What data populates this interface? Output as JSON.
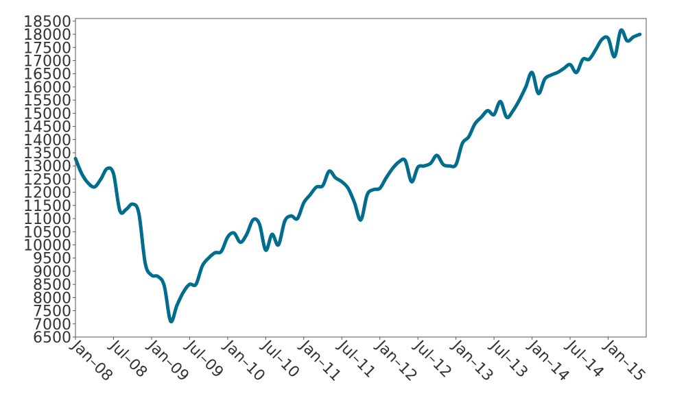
{
  "chart_data": {
    "type": "line",
    "title": "",
    "xlabel": "",
    "ylabel": "",
    "ylim": [
      6500,
      18600
    ],
    "xlim": [
      "2008-01",
      "2015-07"
    ],
    "grid": false,
    "legend": "none",
    "y_ticks": [
      6500,
      7000,
      7500,
      8000,
      8500,
      9000,
      9500,
      10000,
      10500,
      11000,
      11500,
      12000,
      12500,
      13000,
      13500,
      14000,
      14500,
      15000,
      15500,
      16000,
      16500,
      17000,
      17500,
      18000,
      18500
    ],
    "x_ticks": [
      {
        "date": "2008-01",
        "label": "Jan–08"
      },
      {
        "date": "2008-07",
        "label": "Jul–08"
      },
      {
        "date": "2009-01",
        "label": "Jan–09"
      },
      {
        "date": "2009-07",
        "label": "Jul–09"
      },
      {
        "date": "2010-01",
        "label": "Jan–10"
      },
      {
        "date": "2010-07",
        "label": "Jul–10"
      },
      {
        "date": "2011-01",
        "label": "Jan–11"
      },
      {
        "date": "2011-07",
        "label": "Jul–11"
      },
      {
        "date": "2012-01",
        "label": "Jan–12"
      },
      {
        "date": "2012-07",
        "label": "Jul–12"
      },
      {
        "date": "2013-01",
        "label": "Jan–13"
      },
      {
        "date": "2013-07",
        "label": "Jul–13"
      },
      {
        "date": "2014-01",
        "label": "Jan–14"
      },
      {
        "date": "2014-07",
        "label": "Jul–14"
      },
      {
        "date": "2015-01",
        "label": "Jan–15"
      }
    ],
    "series": [
      {
        "color": "#006d8f",
        "points": [
          [
            "2008-01",
            13280
          ],
          [
            "2008-02",
            12700
          ],
          [
            "2008-03",
            12350
          ],
          [
            "2008-04",
            12200
          ],
          [
            "2008-05",
            12500
          ],
          [
            "2008-06",
            12900
          ],
          [
            "2008-07",
            12700
          ],
          [
            "2008-08",
            11300
          ],
          [
            "2008-09",
            11350
          ],
          [
            "2008-10",
            11550
          ],
          [
            "2008-11",
            11200
          ],
          [
            "2008-12",
            9300
          ],
          [
            "2009-01",
            8850
          ],
          [
            "2009-02",
            8800
          ],
          [
            "2009-03",
            8450
          ],
          [
            "2009-04",
            7100
          ],
          [
            "2009-05",
            7700
          ],
          [
            "2009-06",
            8200
          ],
          [
            "2009-07",
            8500
          ],
          [
            "2009-08",
            8500
          ],
          [
            "2009-09",
            9200
          ],
          [
            "2009-10",
            9500
          ],
          [
            "2009-11",
            9700
          ],
          [
            "2009-12",
            9750
          ],
          [
            "2010-01",
            10300
          ],
          [
            "2010-02",
            10450
          ],
          [
            "2010-03",
            10100
          ],
          [
            "2010-04",
            10400
          ],
          [
            "2010-05",
            10950
          ],
          [
            "2010-06",
            10800
          ],
          [
            "2010-07",
            9800
          ],
          [
            "2010-08",
            10400
          ],
          [
            "2010-09",
            10000
          ],
          [
            "2010-10",
            10900
          ],
          [
            "2010-11",
            11100
          ],
          [
            "2010-12",
            11000
          ],
          [
            "2011-01",
            11600
          ],
          [
            "2011-02",
            11900
          ],
          [
            "2011-03",
            12200
          ],
          [
            "2011-04",
            12250
          ],
          [
            "2011-05",
            12800
          ],
          [
            "2011-06",
            12550
          ],
          [
            "2011-07",
            12400
          ],
          [
            "2011-08",
            12150
          ],
          [
            "2011-09",
            11600
          ],
          [
            "2011-10",
            10950
          ],
          [
            "2011-11",
            11900
          ],
          [
            "2011-12",
            12100
          ],
          [
            "2012-01",
            12150
          ],
          [
            "2012-02",
            12550
          ],
          [
            "2012-03",
            12900
          ],
          [
            "2012-04",
            13150
          ],
          [
            "2012-05",
            13200
          ],
          [
            "2012-06",
            12400
          ],
          [
            "2012-07",
            12950
          ],
          [
            "2012-08",
            13000
          ],
          [
            "2012-09",
            13100
          ],
          [
            "2012-10",
            13400
          ],
          [
            "2012-11",
            13050
          ],
          [
            "2012-12",
            13000
          ],
          [
            "2013-01",
            13050
          ],
          [
            "2013-02",
            13850
          ],
          [
            "2013-03",
            14100
          ],
          [
            "2013-04",
            14600
          ],
          [
            "2013-05",
            14850
          ],
          [
            "2013-06",
            15100
          ],
          [
            "2013-07",
            14950
          ],
          [
            "2013-08",
            15450
          ],
          [
            "2013-09",
            14850
          ],
          [
            "2013-10",
            15100
          ],
          [
            "2013-11",
            15500
          ],
          [
            "2013-12",
            16000
          ],
          [
            "2014-01",
            16550
          ],
          [
            "2014-02",
            15750
          ],
          [
            "2014-03",
            16300
          ],
          [
            "2014-04",
            16450
          ],
          [
            "2014-05",
            16550
          ],
          [
            "2014-06",
            16700
          ],
          [
            "2014-07",
            16850
          ],
          [
            "2014-08",
            16550
          ],
          [
            "2014-09",
            17050
          ],
          [
            "2014-10",
            17050
          ],
          [
            "2014-11",
            17400
          ],
          [
            "2014-12",
            17800
          ],
          [
            "2015-01",
            17850
          ],
          [
            "2015-02",
            17150
          ],
          [
            "2015-03",
            18150
          ],
          [
            "2015-04",
            17750
          ],
          [
            "2015-05",
            17900
          ],
          [
            "2015-06",
            18000
          ]
        ]
      }
    ]
  }
}
